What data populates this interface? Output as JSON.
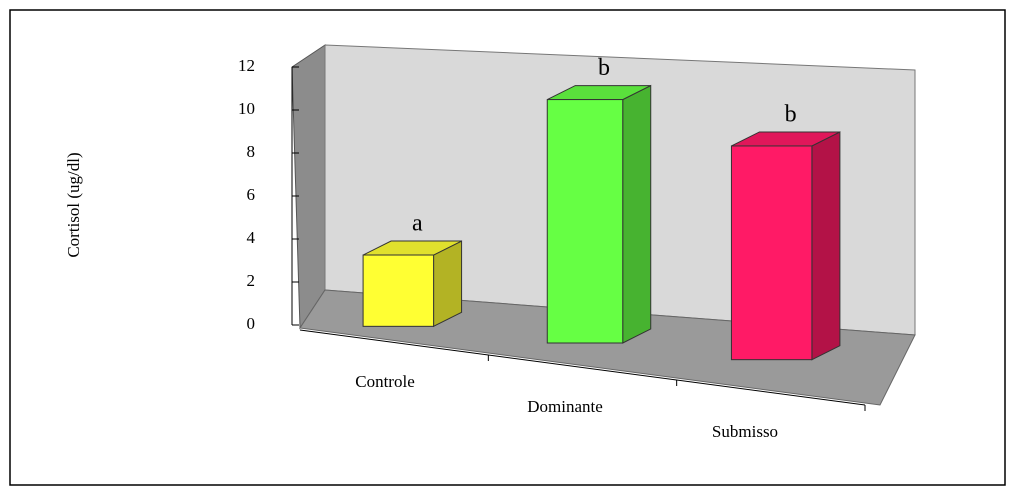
{
  "chart_data": {
    "type": "bar3d",
    "ylabel": "Cortisol (ug/dl)",
    "categories": [
      "Controle",
      "Dominante",
      "Submisso"
    ],
    "values": [
      3.2,
      10.2,
      8.4
    ],
    "annotations": [
      "a",
      "b",
      "b"
    ],
    "colors": [
      "#ffff33",
      "#66ff44",
      "#ff1a66"
    ],
    "ylim": [
      0,
      12
    ],
    "yticks": [
      0,
      2,
      4,
      6,
      8,
      10,
      12
    ]
  }
}
